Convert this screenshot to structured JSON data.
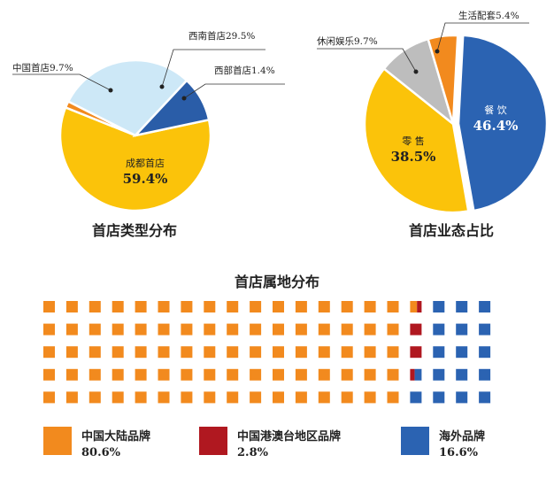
{
  "chart_data": [
    {
      "type": "pie",
      "title": "首店类型分布",
      "labels": [
        "成都首店",
        "西部首店",
        "西南首店",
        "中国首店"
      ],
      "values": [
        59.4,
        1.4,
        29.5,
        9.7
      ],
      "display_values": [
        "59.4%",
        "1.4%",
        "29.5%",
        "9.7%"
      ],
      "colors": [
        "#FBC30A",
        "#F28A1E",
        "#CDE8F7",
        "#2A5DA8"
      ]
    },
    {
      "type": "pie",
      "title": "首店业态占比",
      "labels": [
        "餐  饮",
        "零  售",
        "休闲娱乐",
        "生活配套"
      ],
      "values": [
        46.4,
        38.5,
        9.7,
        5.4
      ],
      "display_values": [
        "46.4%",
        "38.5%",
        "9.7%",
        "5.4%"
      ],
      "colors": [
        "#2B63B2",
        "#FBC30A",
        "#BDBDBD",
        "#F28A1E"
      ]
    },
    {
      "type": "waffle",
      "title": "首店属地分布",
      "labels": [
        "中国大陆品牌",
        "中国港澳台地区品牌",
        "海外品牌"
      ],
      "values": [
        80.6,
        2.8,
        16.6
      ],
      "display_values": [
        "80.6%",
        "2.8%",
        "16.6%"
      ],
      "colors": [
        "#F28A1E",
        "#B01820",
        "#2B63B2"
      ],
      "grid": {
        "rows": 5,
        "cols": 20
      }
    }
  ]
}
